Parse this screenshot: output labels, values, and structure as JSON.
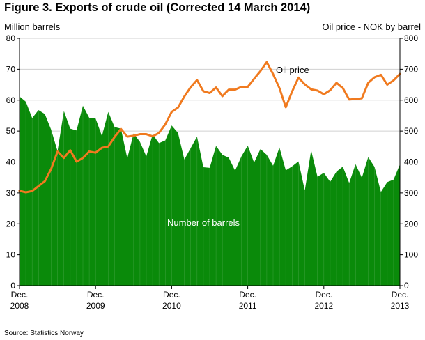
{
  "figure": {
    "title": "Figure 3. Exports of crude oil (Corrected 14 March 2014)",
    "left_axis_unit": "Million barrels",
    "right_axis_unit": "Oil price - NOK by barrel",
    "source": "Source: Statistics Norway."
  },
  "chart_data": {
    "type": "area",
    "x_start": "2008-12",
    "x_end": "2013-12",
    "x_ticks": [
      {
        "line1": "Dec.",
        "line2": "2008"
      },
      {
        "line1": "Dec.",
        "line2": "2009"
      },
      {
        "line1": "Dec.",
        "line2": "2010"
      },
      {
        "line1": "Dec.",
        "line2": "2011"
      },
      {
        "line1": "Dec.",
        "line2": "2012"
      },
      {
        "line1": "Dec.",
        "line2": "2013"
      }
    ],
    "y_left": {
      "label": "Million barrels",
      "min": 0,
      "max": 80,
      "ticks": [
        0,
        10,
        20,
        30,
        40,
        50,
        60,
        70,
        80
      ]
    },
    "y_right": {
      "label": "Oil price - NOK by barrel",
      "min": 0,
      "max": 800,
      "ticks": [
        0,
        100,
        200,
        300,
        400,
        500,
        600,
        700,
        800
      ]
    },
    "grid": "horizontal",
    "series": [
      {
        "name": "Number of barrels",
        "type": "area",
        "axis": "left",
        "color": "#0a8a0a",
        "values": [
          61.2,
          59.5,
          54.2,
          56.8,
          55.5,
          50.4,
          43.5,
          56.5,
          50.8,
          50.2,
          58.2,
          54.3,
          54.1,
          48.4,
          56.2,
          51.3,
          50.8,
          41.2,
          49.2,
          46.5,
          41.8,
          48.9,
          46.1,
          47.0,
          51.8,
          49.4,
          40.8,
          44.5,
          48.2,
          38.3,
          38.1,
          45.2,
          42.3,
          41.4,
          37.2,
          41.8,
          45.3,
          39.8,
          44.2,
          42.3,
          38.8,
          44.7,
          37.3,
          38.6,
          40.2,
          30.8,
          43.8,
          35.2,
          36.5,
          33.6,
          36.9,
          38.5,
          33.2,
          39.3,
          34.9,
          41.6,
          38.4,
          30.3,
          33.5,
          34.3,
          39.2
        ]
      },
      {
        "name": "Oil price",
        "type": "line",
        "axis": "right",
        "color": "#f07a1f",
        "values": [
          307,
          302,
          306,
          322,
          338,
          378,
          434,
          413,
          438,
          401,
          413,
          434,
          430,
          446,
          450,
          481,
          507,
          482,
          485,
          490,
          490,
          483,
          494,
          522,
          562,
          576,
          612,
          642,
          665,
          629,
          623,
          641,
          613,
          634,
          634,
          643,
          643,
          669,
          694,
          723,
          684,
          639,
          577,
          628,
          673,
          651,
          635,
          631,
          619,
          632,
          656,
          639,
          602,
          604,
          606,
          656,
          674,
          682,
          650,
          664,
          685
        ]
      }
    ],
    "annotations": [
      {
        "text": "Oil price",
        "series": "Oil price"
      },
      {
        "text": "Number of barrels",
        "series": "Number of barrels"
      }
    ]
  }
}
